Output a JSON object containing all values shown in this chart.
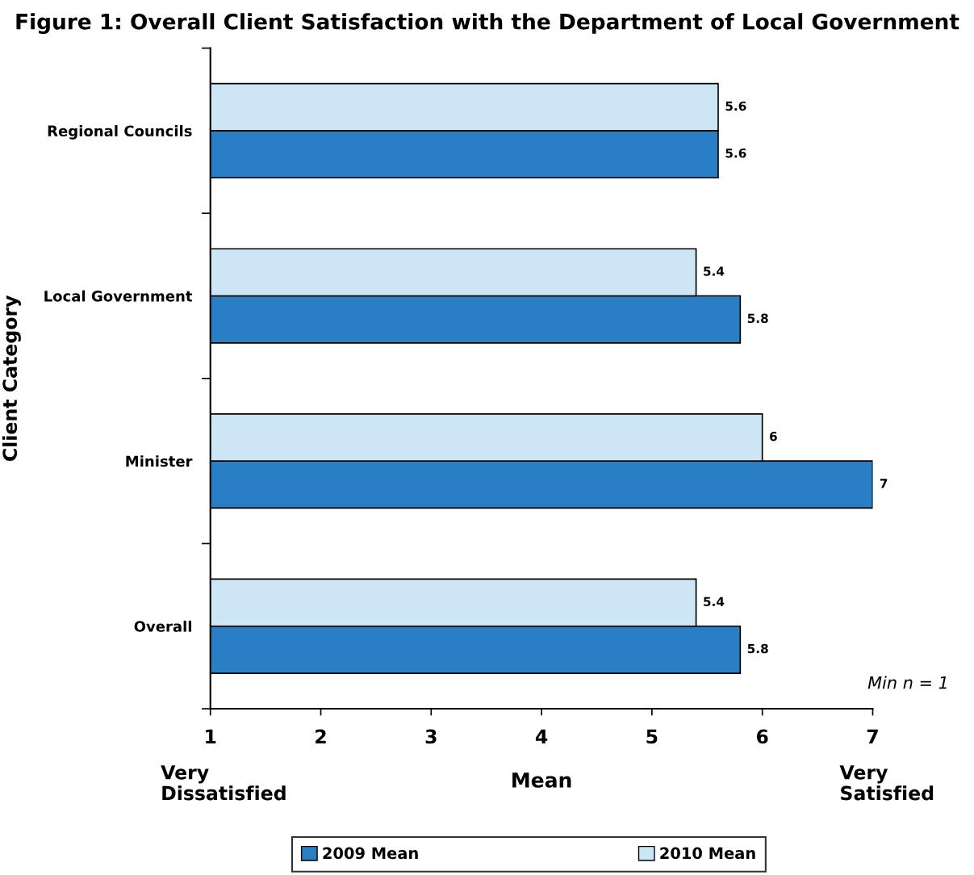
{
  "chart_data": {
    "type": "bar",
    "orientation": "horizontal",
    "title": "Figure 1: Overall Client Satisfaction with the Department of Local Government",
    "xlabel": "Mean",
    "ylabel": "Client Category",
    "categories": [
      "Regional Councils",
      "Local Government",
      "Minister",
      "Overall"
    ],
    "series": [
      {
        "name": "2009 Mean",
        "color": "#2a7fc4",
        "values": [
          5.6,
          5.8,
          7,
          5.8
        ]
      },
      {
        "name": "2010 Mean",
        "color": "#cce6f5",
        "values": [
          5.6,
          5.4,
          6,
          5.4
        ]
      }
    ],
    "xlim": [
      1,
      7
    ],
    "xticks": [
      1,
      2,
      3,
      4,
      5,
      6,
      7
    ],
    "data_labels": true,
    "legend": "bottom",
    "grid": false,
    "annotations": [
      "Very\nDissatisfied",
      "Very\nSatisfied",
      "Min n = 1"
    ]
  }
}
